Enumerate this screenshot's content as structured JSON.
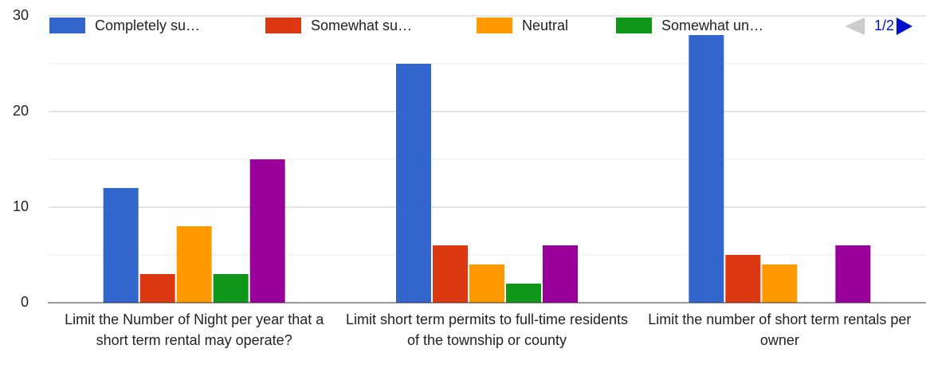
{
  "chart_data": {
    "type": "bar",
    "categories": [
      "Limit the Number of Night per year that a short term rental may operate?",
      "Limit short term permits to full-time residents of the township or county",
      "Limit the number of short term rentals per owner"
    ],
    "series": [
      {
        "name": "Completely su…",
        "color": "#3366cc",
        "values": [
          12,
          25,
          28
        ]
      },
      {
        "name": "Somewhat su…",
        "color": "#dc3912",
        "values": [
          3,
          6,
          5
        ]
      },
      {
        "name": "Neutral",
        "color": "#ff9900",
        "values": [
          8,
          4,
          4
        ]
      },
      {
        "name": "Somewhat un…",
        "color": "#109618",
        "values": [
          3,
          2,
          0
        ]
      },
      {
        "name": null,
        "color": "#990099",
        "values": [
          15,
          6,
          6
        ]
      }
    ],
    "ylim": [
      0,
      30
    ],
    "yticks": [
      0,
      10,
      20,
      30
    ],
    "minor_yticks": [
      5,
      15,
      25
    ],
    "grid": true,
    "legend": "top",
    "legend_page": "1/2"
  }
}
